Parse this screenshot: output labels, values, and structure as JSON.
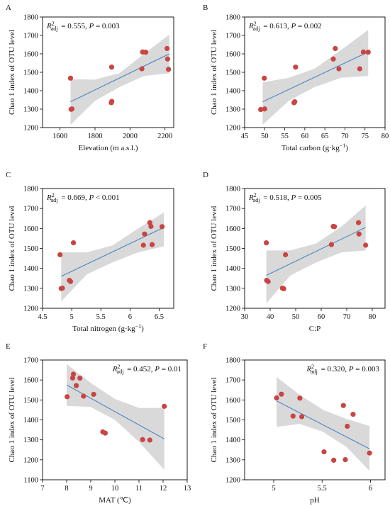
{
  "chart_data": [
    {
      "panel": "A",
      "type": "scatter",
      "xlabel": "Elevation (m a.s.l.)",
      "ylabel": "Chao 1 index of OTU level",
      "xlim": [
        1500,
        2250
      ],
      "xticks": [
        1600,
        1800,
        2000,
        2200
      ],
      "ylim": [
        1200,
        1800
      ],
      "yticks": [
        1200,
        1300,
        1400,
        1500,
        1600,
        1700,
        1800
      ],
      "annotation": {
        "stat": "= 0.555, ",
        "p": "= 0.003"
      },
      "annotation_pos": "top-left",
      "points": [
        {
          "x": 1660,
          "y": 1468
        },
        {
          "x": 1663,
          "y": 1299
        },
        {
          "x": 1668,
          "y": 1301
        },
        {
          "x": 1895,
          "y": 1528
        },
        {
          "x": 1893,
          "y": 1335
        },
        {
          "x": 1896,
          "y": 1342
        },
        {
          "x": 2068,
          "y": 1519
        },
        {
          "x": 2072,
          "y": 1610
        },
        {
          "x": 2090,
          "y": 1609
        },
        {
          "x": 2212,
          "y": 1629
        },
        {
          "x": 2215,
          "y": 1572
        },
        {
          "x": 2220,
          "y": 1516
        }
      ],
      "fit": {
        "x0": 1660,
        "y0": 1340,
        "x1": 2225,
        "y1": 1600
      },
      "band": {
        "x": [
          1660,
          1800,
          1940,
          2080,
          2225
        ],
        "lower": [
          1215,
          1345,
          1420,
          1480,
          1495
        ],
        "upper": [
          1462,
          1460,
          1495,
          1600,
          1705
        ]
      }
    },
    {
      "panel": "B",
      "type": "scatter",
      "xlabel": "Total carbon (g·kg",
      "xlabel_sup": "−1",
      "xlabel_end": ")",
      "ylabel": "Chao 1 index of OTU level",
      "xlim": [
        45,
        80
      ],
      "xticks": [
        45,
        50,
        55,
        60,
        65,
        70,
        75,
        80
      ],
      "ylim": [
        1200,
        1800
      ],
      "yticks": [
        1200,
        1300,
        1400,
        1500,
        1600,
        1700,
        1800
      ],
      "annotation": {
        "stat": "= 0.613, ",
        "p": "= 0.002"
      },
      "annotation_pos": "top-left",
      "points": [
        {
          "x": 49.0,
          "y": 1298
        },
        {
          "x": 49.9,
          "y": 1468
        },
        {
          "x": 50.0,
          "y": 1301
        },
        {
          "x": 57.3,
          "y": 1335
        },
        {
          "x": 57.5,
          "y": 1340
        },
        {
          "x": 57.7,
          "y": 1528
        },
        {
          "x": 67.1,
          "y": 1572
        },
        {
          "x": 67.6,
          "y": 1629
        },
        {
          "x": 68.5,
          "y": 1519
        },
        {
          "x": 73.7,
          "y": 1519
        },
        {
          "x": 74.6,
          "y": 1610
        },
        {
          "x": 75.8,
          "y": 1609
        }
      ],
      "fit": {
        "x0": 49.5,
        "y0": 1340,
        "x1": 75.8,
        "y1": 1610
      },
      "band": {
        "x": [
          49.5,
          56,
          62.5,
          69,
          75.8
        ],
        "lower": [
          1215,
          1345,
          1420,
          1470,
          1480
        ],
        "upper": [
          1445,
          1470,
          1520,
          1620,
          1730
        ]
      }
    },
    {
      "panel": "C",
      "type": "scatter",
      "xlabel": "Total nitrogen (g·kg",
      "xlabel_sup": "−1",
      "xlabel_end": ")",
      "ylabel": "Chao 1 index of OTU level",
      "xlim": [
        4.5,
        6.75
      ],
      "xticks": [
        4.5,
        5.0,
        5.5,
        6.0,
        6.5
      ],
      "ylim": [
        1200,
        1800
      ],
      "yticks": [
        1200,
        1300,
        1400,
        1500,
        1600,
        1700,
        1800
      ],
      "annotation": {
        "stat": "= 0.669, ",
        "p": "< 0.001"
      },
      "annotation_pos": "top-left",
      "points": [
        {
          "x": 4.8,
          "y": 1468
        },
        {
          "x": 4.82,
          "y": 1299
        },
        {
          "x": 4.84,
          "y": 1301
        },
        {
          "x": 4.96,
          "y": 1340
        },
        {
          "x": 4.98,
          "y": 1334
        },
        {
          "x": 5.03,
          "y": 1528
        },
        {
          "x": 6.23,
          "y": 1516
        },
        {
          "x": 6.25,
          "y": 1572
        },
        {
          "x": 6.34,
          "y": 1629
        },
        {
          "x": 6.36,
          "y": 1610
        },
        {
          "x": 6.38,
          "y": 1519
        },
        {
          "x": 6.55,
          "y": 1609
        }
      ],
      "fit": {
        "x0": 4.82,
        "y0": 1360,
        "x1": 6.58,
        "y1": 1605
      },
      "band": {
        "x": [
          4.82,
          5.26,
          5.7,
          6.14,
          6.58
        ],
        "lower": [
          1235,
          1370,
          1430,
          1480,
          1510
        ],
        "upper": [
          1480,
          1480,
          1515,
          1600,
          1680
        ]
      }
    },
    {
      "panel": "D",
      "type": "scatter",
      "xlabel": "C:P",
      "ylabel": "Chao 1 index of OTU level",
      "xlim": [
        30,
        85
      ],
      "xticks": [
        30,
        40,
        50,
        60,
        70,
        80
      ],
      "ylim": [
        1200,
        1800
      ],
      "yticks": [
        1200,
        1300,
        1400,
        1500,
        1600,
        1700,
        1800
      ],
      "annotation": {
        "stat": "= 0.518, ",
        "p": "= 0.005"
      },
      "annotation_pos": "top-left",
      "points": [
        {
          "x": 38.5,
          "y": 1528
        },
        {
          "x": 38.6,
          "y": 1340
        },
        {
          "x": 39.2,
          "y": 1334
        },
        {
          "x": 44.8,
          "y": 1301
        },
        {
          "x": 45.3,
          "y": 1298
        },
        {
          "x": 46.0,
          "y": 1468
        },
        {
          "x": 64.0,
          "y": 1519
        },
        {
          "x": 64.7,
          "y": 1610
        },
        {
          "x": 65.2,
          "y": 1609
        },
        {
          "x": 74.6,
          "y": 1629
        },
        {
          "x": 74.8,
          "y": 1572
        },
        {
          "x": 77.4,
          "y": 1516
        }
      ],
      "fit": {
        "x0": 38.5,
        "y0": 1365,
        "x1": 77.4,
        "y1": 1605
      },
      "band": {
        "x": [
          38.5,
          48,
          58,
          68,
          77.4
        ],
        "lower": [
          1225,
          1365,
          1430,
          1480,
          1490
        ],
        "upper": [
          1490,
          1490,
          1525,
          1610,
          1715
        ]
      }
    },
    {
      "panel": "E",
      "type": "scatter",
      "xlabel": "MAT (℃)",
      "ylabel": "Chao 1 index of OTU level",
      "xlim": [
        7,
        13
      ],
      "xticks": [
        7,
        8,
        9,
        10,
        11,
        12,
        13
      ],
      "ylim": [
        1100,
        1700
      ],
      "yticks": [
        1100,
        1200,
        1300,
        1400,
        1500,
        1600,
        1700
      ],
      "annotation": {
        "stat": "= 0.452, ",
        "p": "= 0.01"
      },
      "annotation_pos": "top-right",
      "points": [
        {
          "x": 8.02,
          "y": 1516
        },
        {
          "x": 8.25,
          "y": 1610
        },
        {
          "x": 8.28,
          "y": 1629
        },
        {
          "x": 8.4,
          "y": 1572
        },
        {
          "x": 8.55,
          "y": 1609
        },
        {
          "x": 8.7,
          "y": 1519
        },
        {
          "x": 9.12,
          "y": 1528
        },
        {
          "x": 9.5,
          "y": 1340
        },
        {
          "x": 9.6,
          "y": 1334
        },
        {
          "x": 11.15,
          "y": 1301
        },
        {
          "x": 11.45,
          "y": 1299
        },
        {
          "x": 12.05,
          "y": 1468
        }
      ],
      "fit": {
        "x0": 8.0,
        "y0": 1575,
        "x1": 12.05,
        "y1": 1305
      },
      "band": {
        "x": [
          8.0,
          9.0,
          10.0,
          11.0,
          12.05
        ],
        "lower": [
          1470,
          1465,
          1400,
          1290,
          1150
        ],
        "upper": [
          1680,
          1585,
          1505,
          1460,
          1460
        ]
      }
    },
    {
      "panel": "F",
      "type": "scatter",
      "xlabel": "pH",
      "ylabel": "Chao 1 index of OTU level",
      "xlim": [
        4.7,
        6.15
      ],
      "xticks": [
        5.0,
        5.5,
        6.0
      ],
      "ylim": [
        1200,
        1800
      ],
      "yticks": [
        1200,
        1300,
        1400,
        1500,
        1600,
        1700,
        1800
      ],
      "annotation": {
        "stat": "= 0.320, ",
        "p": "= 0.003"
      },
      "annotation_pos": "top-right",
      "points": [
        {
          "x": 5.03,
          "y": 1610
        },
        {
          "x": 5.08,
          "y": 1629
        },
        {
          "x": 5.2,
          "y": 1519
        },
        {
          "x": 5.27,
          "y": 1609
        },
        {
          "x": 5.29,
          "y": 1516
        },
        {
          "x": 5.52,
          "y": 1340
        },
        {
          "x": 5.62,
          "y": 1298
        },
        {
          "x": 5.72,
          "y": 1572
        },
        {
          "x": 5.74,
          "y": 1301
        },
        {
          "x": 5.76,
          "y": 1468
        },
        {
          "x": 5.82,
          "y": 1528
        },
        {
          "x": 5.99,
          "y": 1334
        }
      ],
      "fit": {
        "x0": 5.03,
        "y0": 1595,
        "x1": 5.99,
        "y1": 1355
      },
      "band": {
        "x": [
          5.03,
          5.27,
          5.51,
          5.75,
          5.99
        ],
        "lower": [
          1465,
          1480,
          1440,
          1365,
          1245
        ],
        "upper": [
          1715,
          1625,
          1550,
          1505,
          1470
        ]
      }
    }
  ]
}
